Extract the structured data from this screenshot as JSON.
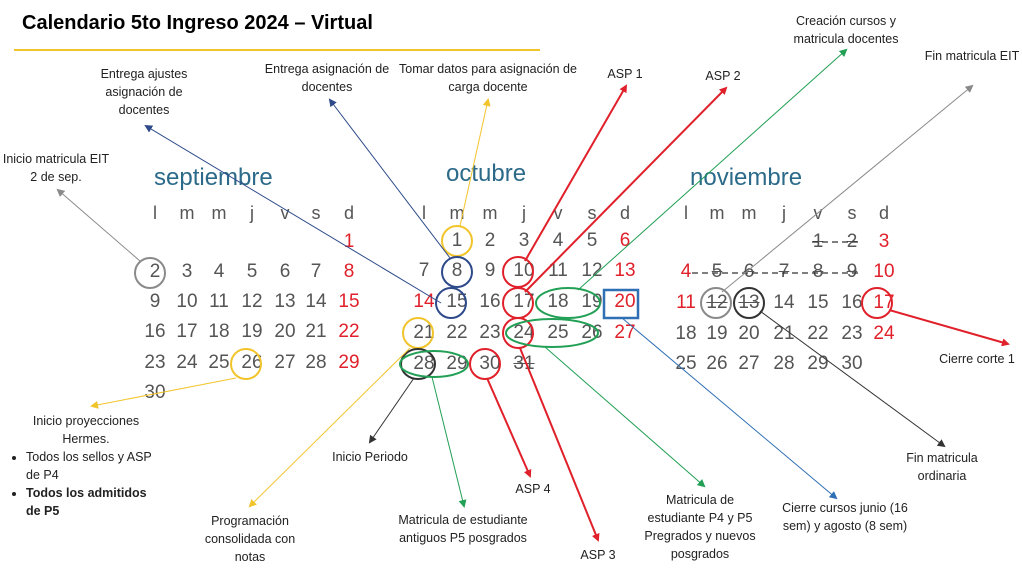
{
  "title": "Calendario 5to Ingreso 2024 – Virtual",
  "weekday_headers": [
    "l",
    "m",
    "m",
    "j",
    "v",
    "s",
    "d"
  ],
  "months": [
    {
      "name": "septiembre",
      "weeks": [
        [
          "",
          "",
          "",
          "",
          "",
          "",
          "1"
        ],
        [
          "2",
          "3",
          "4",
          "5",
          "6",
          "7",
          "8"
        ],
        [
          "9",
          "10",
          "11",
          "12",
          "13",
          "14",
          "15"
        ],
        [
          "16",
          "17",
          "18",
          "19",
          "20",
          "21",
          "22"
        ],
        [
          "23",
          "24",
          "25",
          "26",
          "27",
          "28",
          "29"
        ],
        [
          "30",
          "",
          "",
          "",
          "",
          "",
          ""
        ]
      ]
    },
    {
      "name": "octubre",
      "weeks": [
        [
          "",
          "1",
          "2",
          "3",
          "4",
          "5",
          "6"
        ],
        [
          "7",
          "8",
          "9",
          "10",
          "11",
          "12",
          "13"
        ],
        [
          "14",
          "15",
          "16",
          "17",
          "18",
          "19",
          "20"
        ],
        [
          "21",
          "22",
          "23",
          "24",
          "25",
          "26",
          "27"
        ],
        [
          "28",
          "29",
          "30",
          "31",
          "",
          "",
          ""
        ]
      ]
    },
    {
      "name": "noviembre",
      "weeks": [
        [
          "",
          "",
          "",
          "",
          "1",
          "2",
          "3"
        ],
        [
          "4",
          "5",
          "6",
          "7",
          "8",
          "9",
          "10"
        ],
        [
          "11",
          "12",
          "13",
          "14",
          "15",
          "16",
          "17"
        ],
        [
          "18",
          "19",
          "20",
          "21",
          "22",
          "23",
          "24"
        ],
        [
          "25",
          "26",
          "27",
          "28",
          "29",
          "30",
          ""
        ]
      ]
    }
  ],
  "red_days": {
    "septiembre": [
      "1",
      "8",
      "15",
      "22",
      "29"
    ],
    "octubre": [
      "6",
      "13",
      "14",
      "20",
      "27"
    ],
    "noviembre": [
      "3",
      "4",
      "10",
      "11",
      "17",
      "24"
    ]
  },
  "struck_days": {
    "noviembre": [
      "1",
      "2",
      "5",
      "6",
      "7",
      "8",
      "9",
      "12",
      "13"
    ],
    "octubre": [
      "31"
    ]
  },
  "colors": {
    "yellow": "#f2c42c",
    "blue": "#2e4a8a",
    "red": "#e0202a",
    "green": "#22a055",
    "gray": "#8a8a8a",
    "dark": "#333333",
    "month_blue": "#2c6a8a",
    "box_blue": "#2f6fb3"
  },
  "annotations": {
    "inicio_eit": "Inicio matricula EIT 2 de sep.",
    "entrega_ajustes": "Entrega ajustes asignación de docentes",
    "entrega_asignacion": "Entrega asignación de docentes",
    "tomar_datos": "Tomar datos para asignación de carga docente",
    "asp1": "ASP 1",
    "asp2": "ASP 2",
    "creacion": "Creación cursos y matricula docentes",
    "fin_eit": "Fin matricula EIT",
    "cierre_corte": "Cierre corte 1",
    "fin_ordinaria": "Fin matricula ordinaria",
    "cierre_cursos": "Cierre cursos junio (16 sem)  y agosto (8 sem)",
    "matricula_p4": "Matricula de estudiante P4 y P5 Pregrados y nuevos posgrados",
    "asp3": "ASP 3",
    "asp4": "ASP 4",
    "matricula_antiguos": "Matricula de estudiante antiguos P5 posgrados",
    "inicio_periodo": "Inicio Periodo",
    "programacion": "Programación consolidada con notas",
    "inicio_proyecciones": "Inicio proyecciones Hermes.",
    "bullet1": "Todos los sellos y ASP de P4",
    "bullet2": "Todos los admitidos de P5"
  }
}
